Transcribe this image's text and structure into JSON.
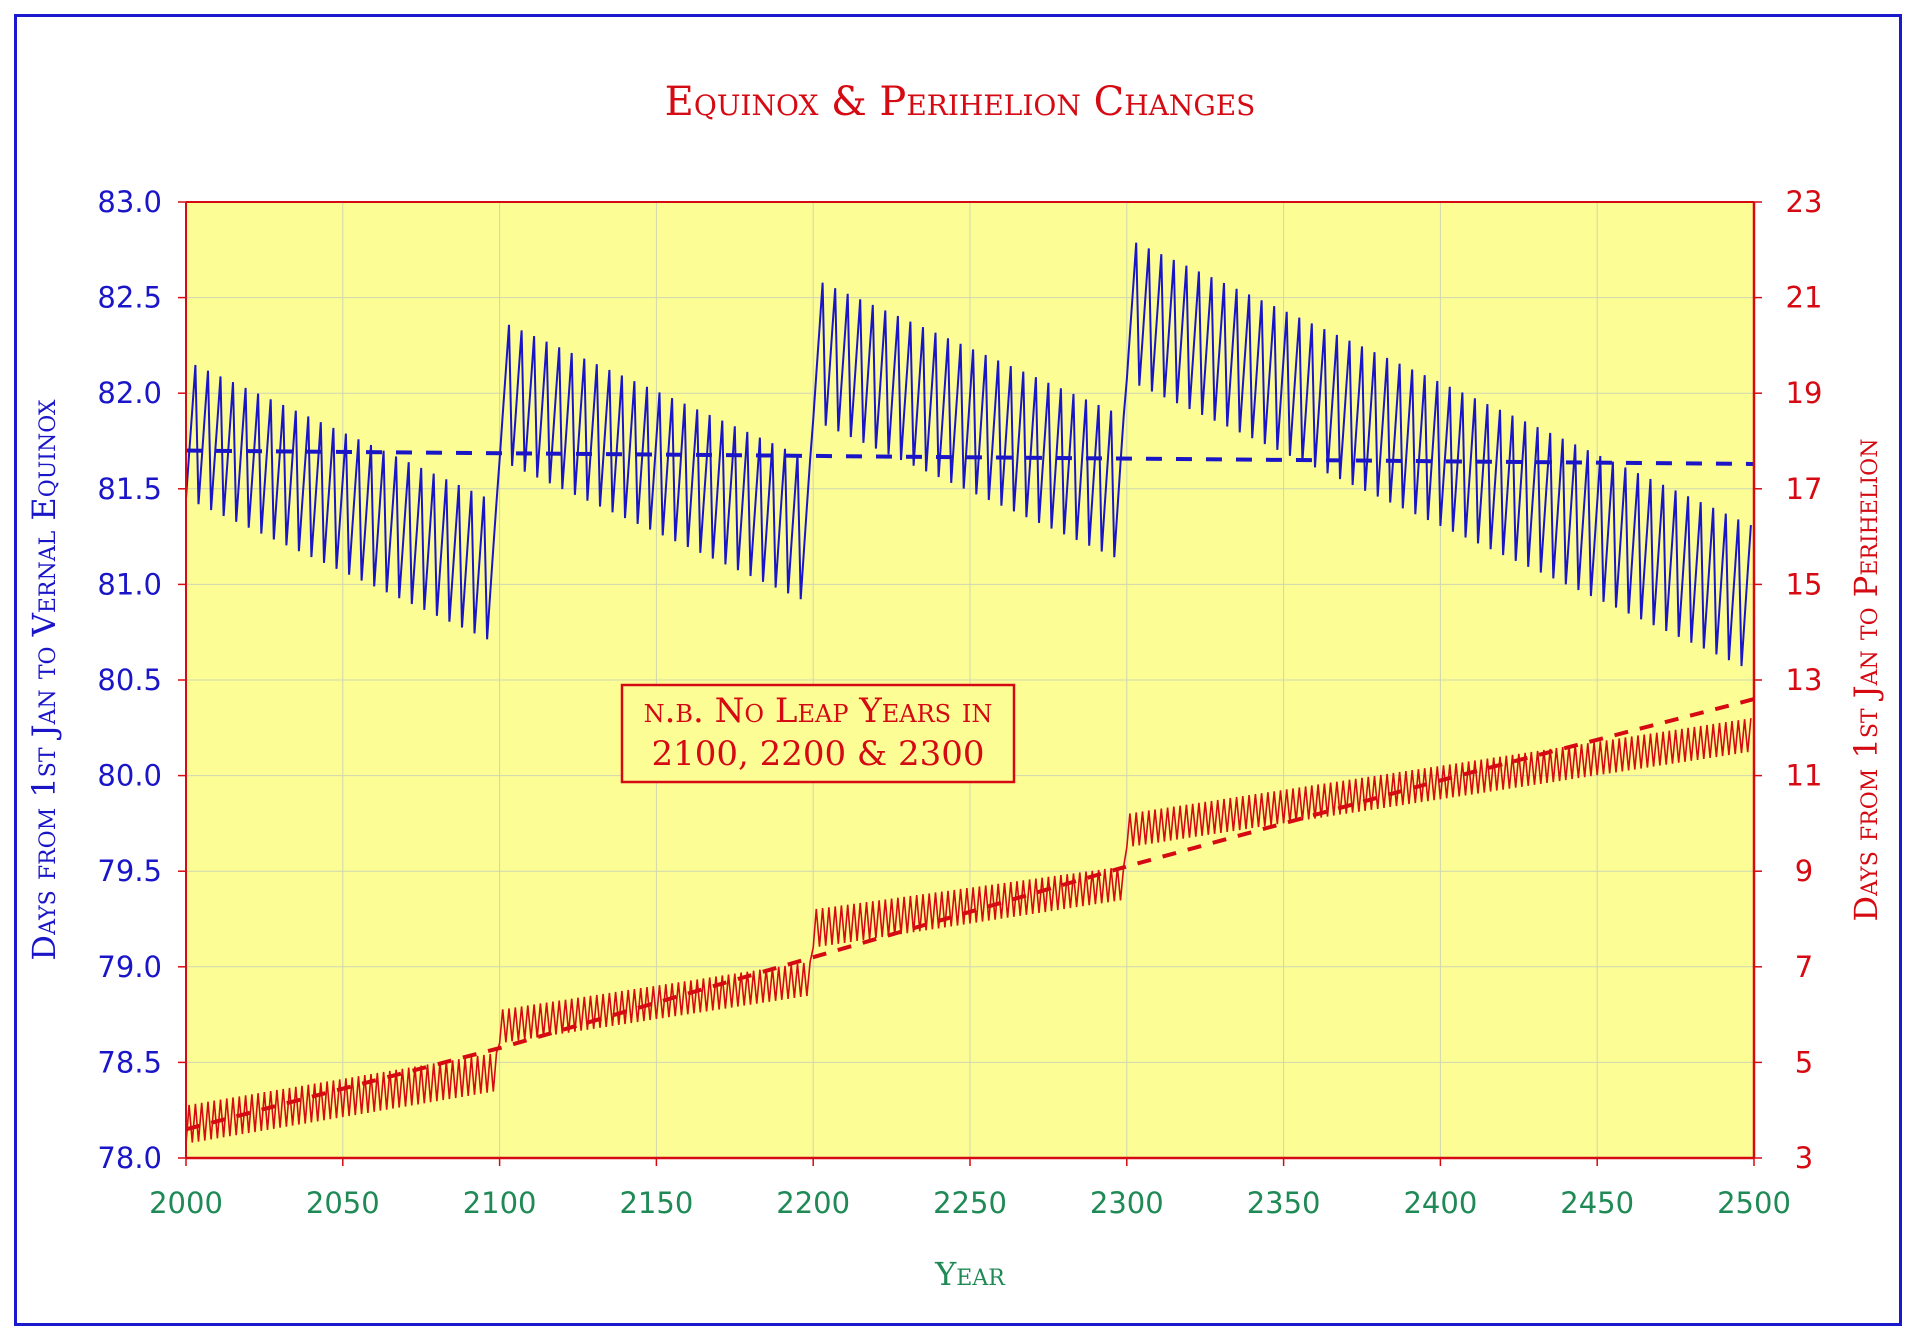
{
  "colors": {
    "equinox": "#1a16c8",
    "perihelion": "#d50a12",
    "plot_bg": "#fdfd96",
    "axis_x": "#1f8a55",
    "grid": "#cfd6b0"
  },
  "chart_data": {
    "type": "line",
    "title": "Equinox & Perihelion Changes",
    "xlabel": "Year",
    "ylabel_left": "Days from 1st Jan to Vernal Equinox",
    "ylabel_right": "Days from 1st Jan to Perihelion",
    "xlim": [
      2000,
      2500
    ],
    "ylim_left": [
      78.0,
      83.0
    ],
    "ylim_right": [
      3,
      23
    ],
    "x_ticks": [
      "2000",
      "2050",
      "2100",
      "2150",
      "2200",
      "2250",
      "2300",
      "2350",
      "2400",
      "2450",
      "2500"
    ],
    "y_ticks_left": [
      "83.0",
      "82.5",
      "82.0",
      "81.5",
      "81.0",
      "80.5",
      "80.0",
      "79.5",
      "79.0",
      "78.5",
      "78.0"
    ],
    "y_ticks_right": [
      "23",
      "21",
      "19",
      "17",
      "15",
      "13",
      "11",
      "9",
      "7",
      "5",
      "3"
    ],
    "grid": true,
    "annotation": {
      "line1": "n.b. No Leap Years in",
      "line2": "2100, 2200 & 2300"
    },
    "series": [
      {
        "name": "Days from 1st Jan to Vernal Equinox",
        "axis": "left",
        "style": "solid",
        "description_points": "sawtooth; leap-year value at start of each century block then yearly +0.24, -0.76 on leap years",
        "centuries": [
          {
            "start_year": 2000,
            "end_year": 2099,
            "leap_low_start": 81.45,
            "leap_low_end": 80.69,
            "high_start": 82.17,
            "high_end": 81.43
          },
          {
            "start_year": 2100,
            "end_year": 2199,
            "leap_low_start": 81.65,
            "leap_low_end": 80.9,
            "high_start": 82.38,
            "high_end": 81.65
          },
          {
            "start_year": 2200,
            "end_year": 2299,
            "leap_low_start": 81.86,
            "leap_low_end": 81.12,
            "high_start": 82.6,
            "high_end": 81.88
          },
          {
            "start_year": 2300,
            "end_year": 2499,
            "leap_low_start": 82.07,
            "leap_low_end": 80.55,
            "high_start": 82.81,
            "high_end": 81.31
          }
        ]
      },
      {
        "name": "Equinox trend",
        "axis": "left",
        "style": "dashed",
        "x": [
          2000,
          2500
        ],
        "y": [
          81.7,
          81.63
        ]
      },
      {
        "name": "Days from 1st Jan to Perihelion",
        "axis": "right",
        "style": "solid",
        "description_points": "sawtooth; yearly oscillation about 0.75 day amplitude, stepping up each non-leap century",
        "centuries": [
          {
            "start_year": 2000,
            "end_year": 2099,
            "low_start": 3.3,
            "low_end": 4.4,
            "high_start": 4.1,
            "high_end": 5.2
          },
          {
            "start_year": 2100,
            "end_year": 2199,
            "low_start": 5.4,
            "low_end": 6.4,
            "high_start": 6.1,
            "high_end": 7.1
          },
          {
            "start_year": 2200,
            "end_year": 2299,
            "low_start": 7.4,
            "low_end": 8.4,
            "high_start": 8.2,
            "high_end": 9.1
          },
          {
            "start_year": 2300,
            "end_year": 2499,
            "low_start": 9.5,
            "low_end": 11.5,
            "high_start": 10.2,
            "high_end": 12.2
          }
        ]
      },
      {
        "name": "Perihelion trend",
        "axis": "right",
        "style": "dashed",
        "x": [
          2000,
          2100,
          2200,
          2300,
          2400,
          2500
        ],
        "y": [
          3.6,
          5.3,
          7.2,
          9.1,
          10.9,
          12.6
        ]
      }
    ]
  }
}
